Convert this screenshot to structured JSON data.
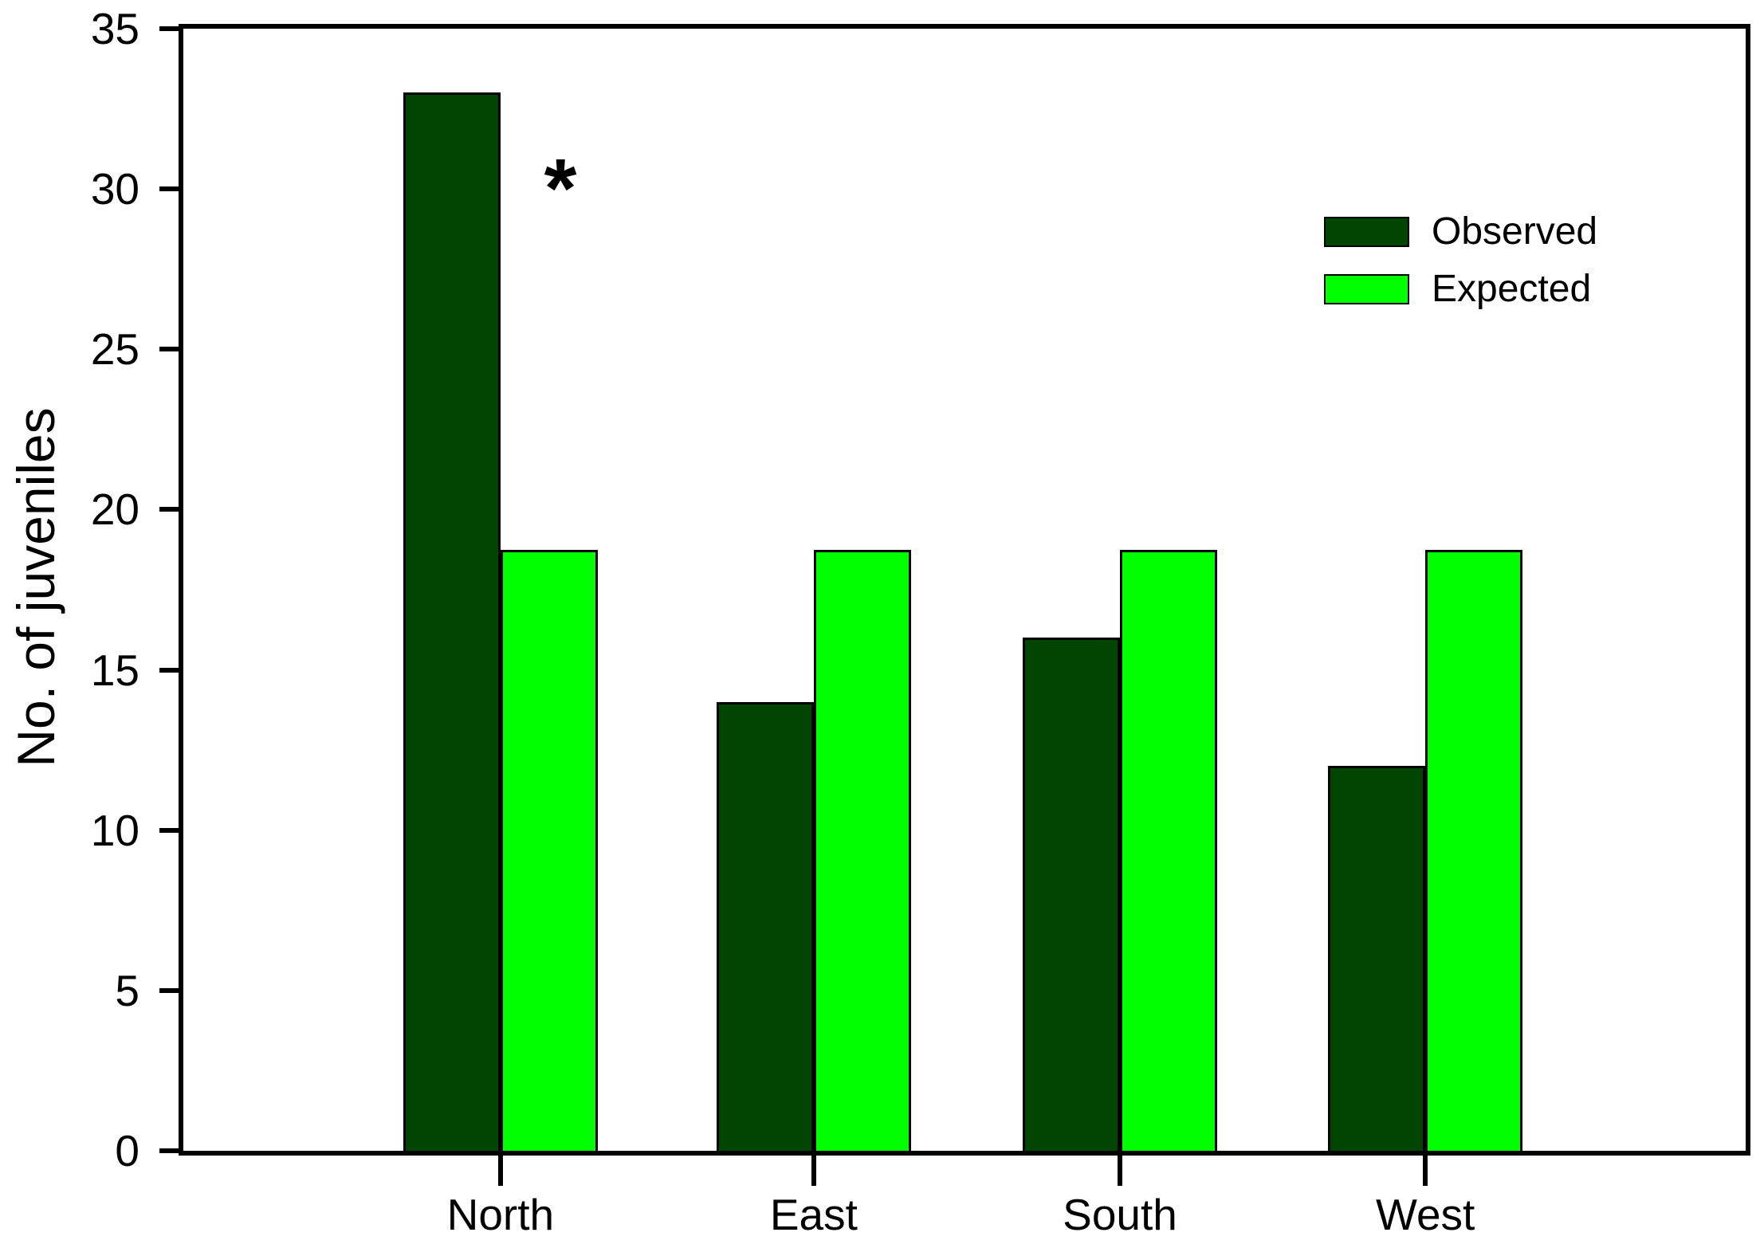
{
  "chart_data": {
    "type": "bar",
    "title": "",
    "categories": [
      "North",
      "East",
      "South",
      "West"
    ],
    "series": [
      {
        "name": "Observed",
        "color": "#004500",
        "values": [
          33,
          14,
          16,
          12
        ]
      },
      {
        "name": "Expected",
        "color": "#00FF00",
        "values": [
          18.75,
          18.75,
          18.75,
          18.75
        ]
      }
    ],
    "xlabel": "",
    "ylabel": "No. of juveniles",
    "ylim": [
      0,
      35
    ],
    "ytick_step": 5,
    "ytick_labels": [
      "0",
      "5",
      "10",
      "15",
      "20",
      "25",
      "30",
      "35"
    ],
    "grid": false,
    "legend_position": "top-right",
    "annotation": {
      "text": "*"
    }
  }
}
